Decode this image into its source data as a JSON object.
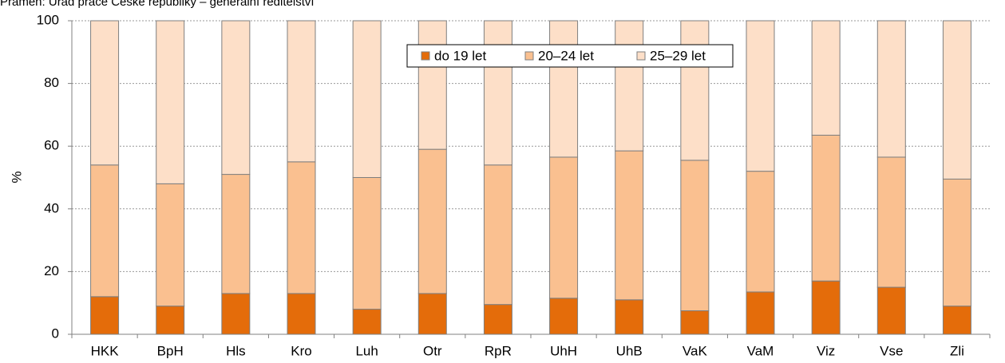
{
  "chart_data": {
    "type": "stacked_bar",
    "source": "Pramen: Úřad práce České republiky – generální ředitelství",
    "y_label": "%",
    "categories": [
      "HKK",
      "BpH",
      "Hls",
      "Kro",
      "Luh",
      "Otr",
      "RpR",
      "UhH",
      "UhB",
      "VaK",
      "VaM",
      "Viz",
      "Vse",
      "Zli"
    ],
    "series": [
      {
        "name": "do 19 let",
        "color": "#e46c0a",
        "values": [
          12,
          9,
          13,
          13,
          8,
          13,
          9.5,
          11.5,
          11,
          7.5,
          13.5,
          17,
          15,
          9
        ]
      },
      {
        "name": "20–24 let",
        "color": "#fac090",
        "values": [
          42,
          39,
          38,
          42,
          42,
          46,
          44.5,
          45,
          47.5,
          48,
          38.5,
          46.5,
          41.5,
          40.5
        ]
      },
      {
        "name": "25–29 let",
        "color": "#fddfc8",
        "values": [
          46,
          52,
          49,
          45,
          50,
          41,
          46,
          43.5,
          41.5,
          44.5,
          48,
          36.5,
          43.5,
          50.5
        ]
      }
    ],
    "ylim": [
      0,
      100
    ],
    "yticks": [
      0,
      20,
      40,
      60,
      80,
      100
    ],
    "grid": true,
    "legend": "top"
  }
}
